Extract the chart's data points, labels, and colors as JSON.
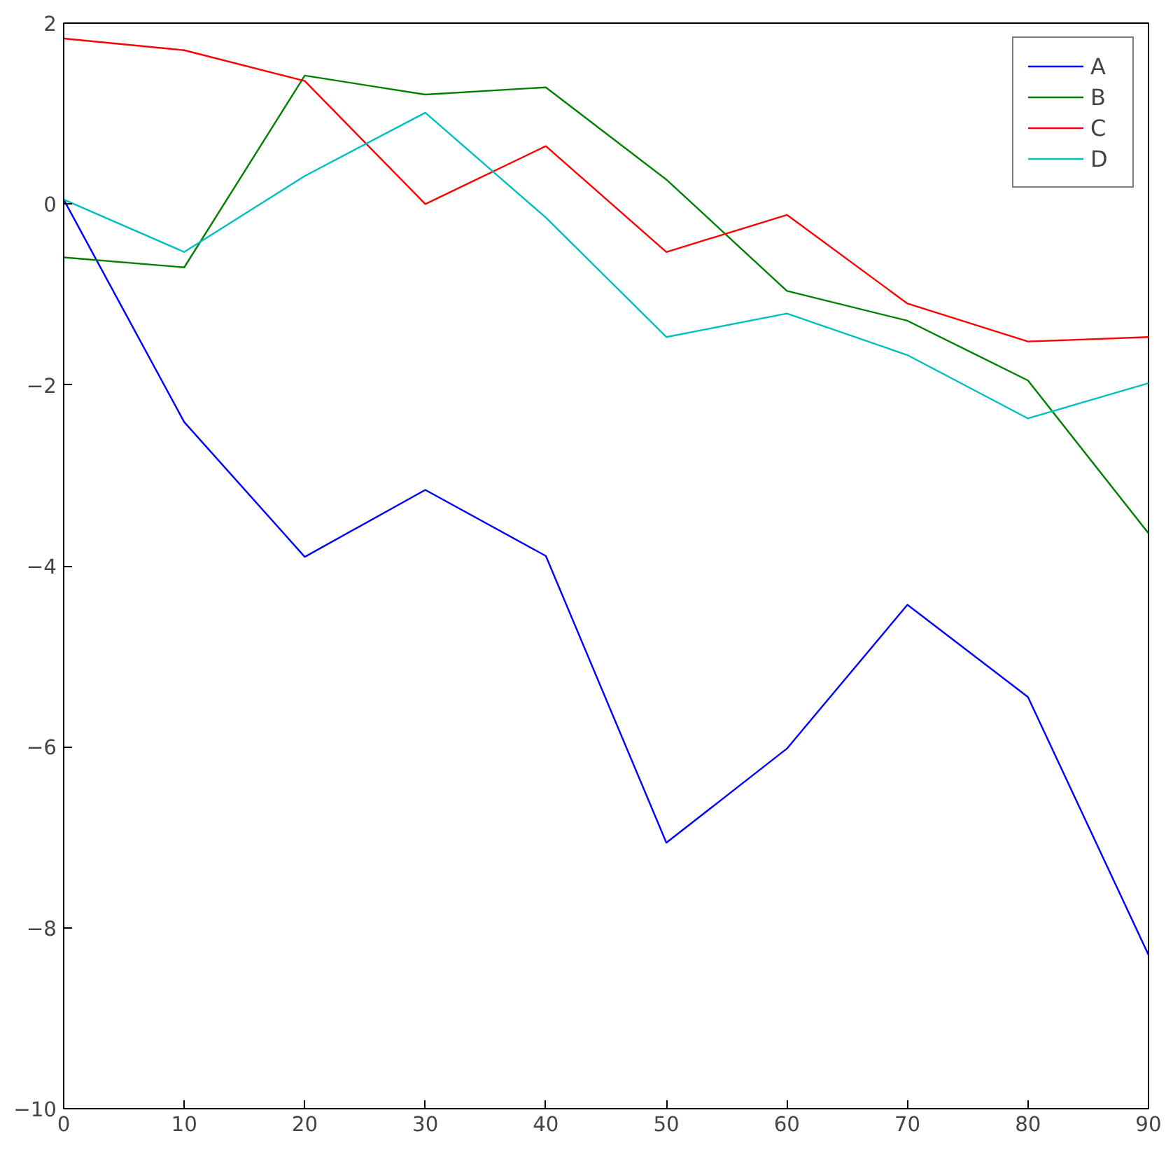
{
  "chart_data": {
    "type": "line",
    "x": [
      0,
      10,
      20,
      30,
      40,
      50,
      60,
      70,
      80,
      90
    ],
    "series": [
      {
        "name": "A",
        "color": "#0000ff",
        "values": [
          0.05,
          -2.41,
          -3.9,
          -3.16,
          -3.89,
          -7.06,
          -6.02,
          -4.43,
          -5.45,
          -8.3
        ]
      },
      {
        "name": "B",
        "color": "#008000",
        "values": [
          -0.59,
          -0.7,
          1.42,
          1.21,
          1.29,
          0.27,
          -0.96,
          -1.29,
          -1.95,
          -3.64
        ]
      },
      {
        "name": "C",
        "color": "#ff0000",
        "values": [
          1.83,
          1.7,
          1.36,
          0.0,
          0.64,
          -0.53,
          -0.12,
          -1.1,
          -1.52,
          -1.47
        ]
      },
      {
        "name": "D",
        "color": "#00bfbf",
        "values": [
          0.05,
          -0.53,
          0.31,
          1.01,
          -0.15,
          -1.47,
          -1.21,
          -1.67,
          -2.37,
          -1.98
        ]
      }
    ],
    "xlim": [
      0,
      90
    ],
    "xticks": [
      0,
      10,
      20,
      30,
      40,
      50,
      60,
      70,
      80,
      90
    ],
    "ylim": [
      -10,
      2
    ],
    "yticks": [
      {
        "value": -10,
        "label": "−10"
      },
      {
        "value": -8,
        "label": "−8"
      },
      {
        "value": -6,
        "label": "−6"
      },
      {
        "value": -4,
        "label": "−4"
      },
      {
        "value": -2,
        "label": "−2"
      },
      0,
      2
    ],
    "grid": false,
    "legend": "top right",
    "line_style": "solid",
    "marker": "none"
  }
}
